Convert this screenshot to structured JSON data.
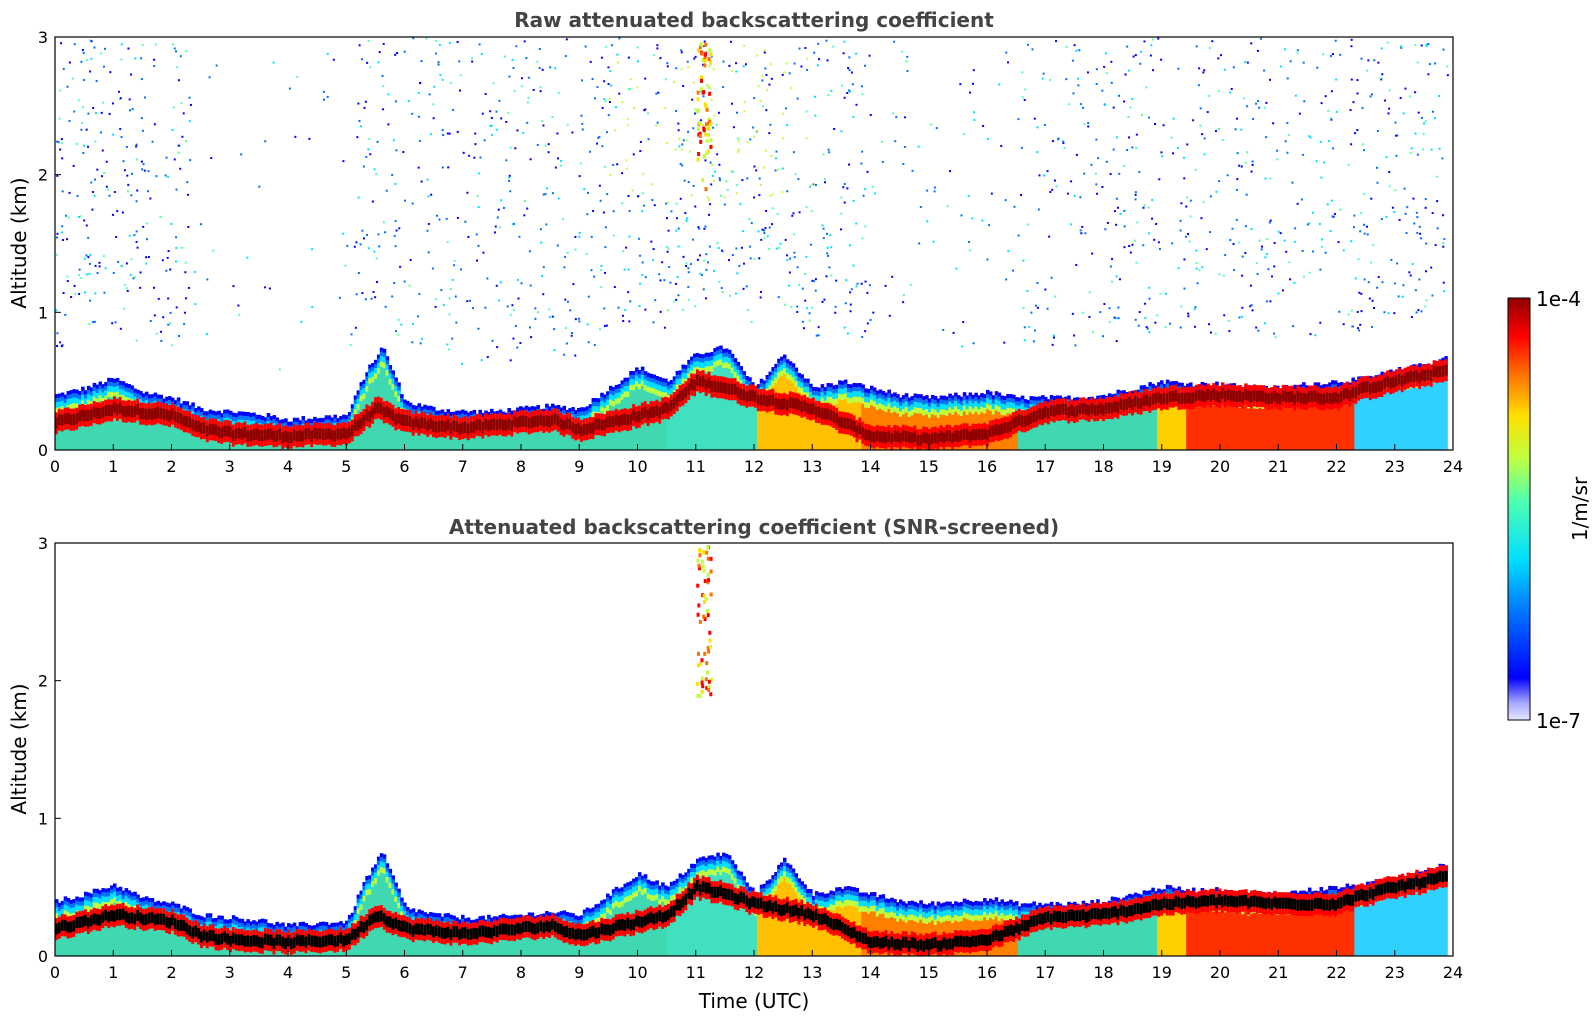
{
  "chart_data": [
    {
      "type": "heatmap",
      "title": "Raw attenuated backscattering coefficient",
      "xlabel": "",
      "ylabel": "Altitude (km)",
      "xlim": [
        0,
        24
      ],
      "ylim": [
        0,
        3
      ],
      "x_ticks": [
        "0",
        "1",
        "2",
        "3",
        "4",
        "5",
        "6",
        "7",
        "8",
        "9",
        "10",
        "11",
        "12",
        "13",
        "14",
        "15",
        "16",
        "17",
        "18",
        "19",
        "20",
        "21",
        "22",
        "23",
        "24"
      ],
      "y_ticks": [
        "0",
        "1",
        "2",
        "3"
      ],
      "screened": false,
      "colorbar": {
        "min_label": "1e-7",
        "max_label": "1e-4",
        "label": "1/m/sr",
        "scale": "log"
      },
      "layer_top_km": {
        "time_utc": [
          0,
          0.5,
          1,
          1.5,
          2,
          2.5,
          3,
          3.5,
          4,
          4.5,
          5,
          5.3,
          5.6,
          6,
          6.5,
          7,
          7.5,
          8,
          8.5,
          9,
          9.5,
          10,
          10.5,
          11,
          11.5,
          12,
          12.5,
          13,
          13.5,
          14,
          14.5,
          15,
          15.5,
          16,
          16.5,
          17,
          17.5,
          18,
          18.5,
          19,
          19.5,
          20,
          20.5,
          21,
          21.5,
          22,
          22.5,
          23,
          23.5,
          23.9
        ],
        "altitude": [
          0.4,
          0.45,
          0.52,
          0.42,
          0.38,
          0.3,
          0.28,
          0.26,
          0.22,
          0.24,
          0.25,
          0.55,
          0.75,
          0.35,
          0.3,
          0.28,
          0.28,
          0.3,
          0.32,
          0.3,
          0.45,
          0.6,
          0.5,
          0.7,
          0.75,
          0.45,
          0.7,
          0.45,
          0.5,
          0.45,
          0.4,
          0.38,
          0.4,
          0.42,
          0.38,
          0.38,
          0.38,
          0.4,
          0.45,
          0.5,
          0.48,
          0.48,
          0.45,
          0.45,
          0.48,
          0.5,
          0.52,
          0.58,
          0.62,
          0.68
        ]
      },
      "aerosol_layer_km": {
        "time_utc": [
          0,
          1,
          2,
          2.5,
          3,
          4,
          5,
          5.5,
          6,
          7,
          8,
          8.5,
          9,
          9.5,
          10,
          10.5,
          11,
          11.5,
          12,
          13,
          13.5,
          14,
          15,
          16,
          16.5,
          17,
          18,
          19,
          20,
          21,
          22,
          22.5,
          23,
          23.9
        ],
        "altitude": [
          0.2,
          0.3,
          0.25,
          0.15,
          0.12,
          0.1,
          0.12,
          0.3,
          0.2,
          0.16,
          0.2,
          0.22,
          0.15,
          0.2,
          0.25,
          0.3,
          0.5,
          0.45,
          0.38,
          0.3,
          0.2,
          0.1,
          0.08,
          0.12,
          0.2,
          0.28,
          0.3,
          0.38,
          0.4,
          0.38,
          0.38,
          0.45,
          0.5,
          0.58
        ]
      },
      "upper_layer": {
        "time_utc": [
          11.0,
          11.5
        ],
        "altitude_km": [
          1.9,
          3.0
        ]
      }
    },
    {
      "type": "heatmap",
      "title": "Attenuated backscattering coefficient (SNR-screened)",
      "xlabel": "Time (UTC)",
      "ylabel": "Altitude (km)",
      "xlim": [
        0,
        24
      ],
      "ylim": [
        0,
        3
      ],
      "x_ticks": [
        "0",
        "1",
        "2",
        "3",
        "4",
        "5",
        "6",
        "7",
        "8",
        "9",
        "10",
        "11",
        "12",
        "13",
        "14",
        "15",
        "16",
        "17",
        "18",
        "19",
        "20",
        "21",
        "22",
        "23",
        "24"
      ],
      "y_ticks": [
        "0",
        "1",
        "2",
        "3"
      ],
      "screened": true,
      "colorbar": {
        "min_label": "1e-7",
        "max_label": "1e-4",
        "label": "1/m/sr",
        "scale": "log"
      },
      "upper_layer": {
        "time_utc": [
          11.0,
          11.5
        ],
        "altitude_km": [
          1.9,
          3.0
        ]
      }
    }
  ],
  "colors": {
    "jet": [
      "#00008f",
      "#0000ff",
      "#0070ff",
      "#00dfff",
      "#50ffaf",
      "#bfff40",
      "#ffe000",
      "#ff7000",
      "#ff0000",
      "#8f0000"
    ],
    "title": "#444444",
    "saturated": "#000000"
  }
}
